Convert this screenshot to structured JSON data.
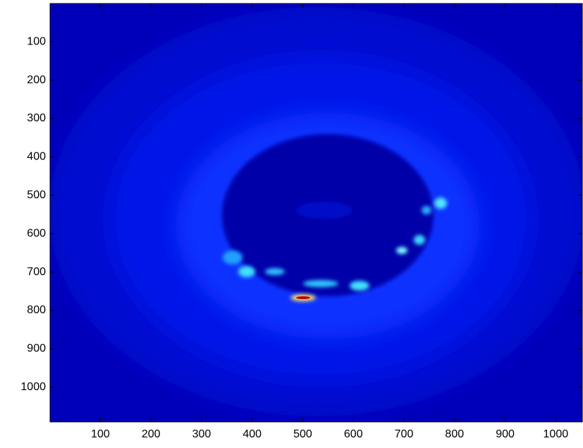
{
  "chart_data": {
    "type": "heatmap",
    "xlim": [
      0.5,
      1052.5
    ],
    "ylim": [
      0.5,
      1090.5
    ],
    "y_reversed": true,
    "xticks": [
      100,
      200,
      300,
      400,
      500,
      600,
      700,
      800,
      900,
      1000
    ],
    "yticks": [
      100,
      200,
      300,
      400,
      500,
      600,
      700,
      800,
      900,
      1000
    ]
  }
}
